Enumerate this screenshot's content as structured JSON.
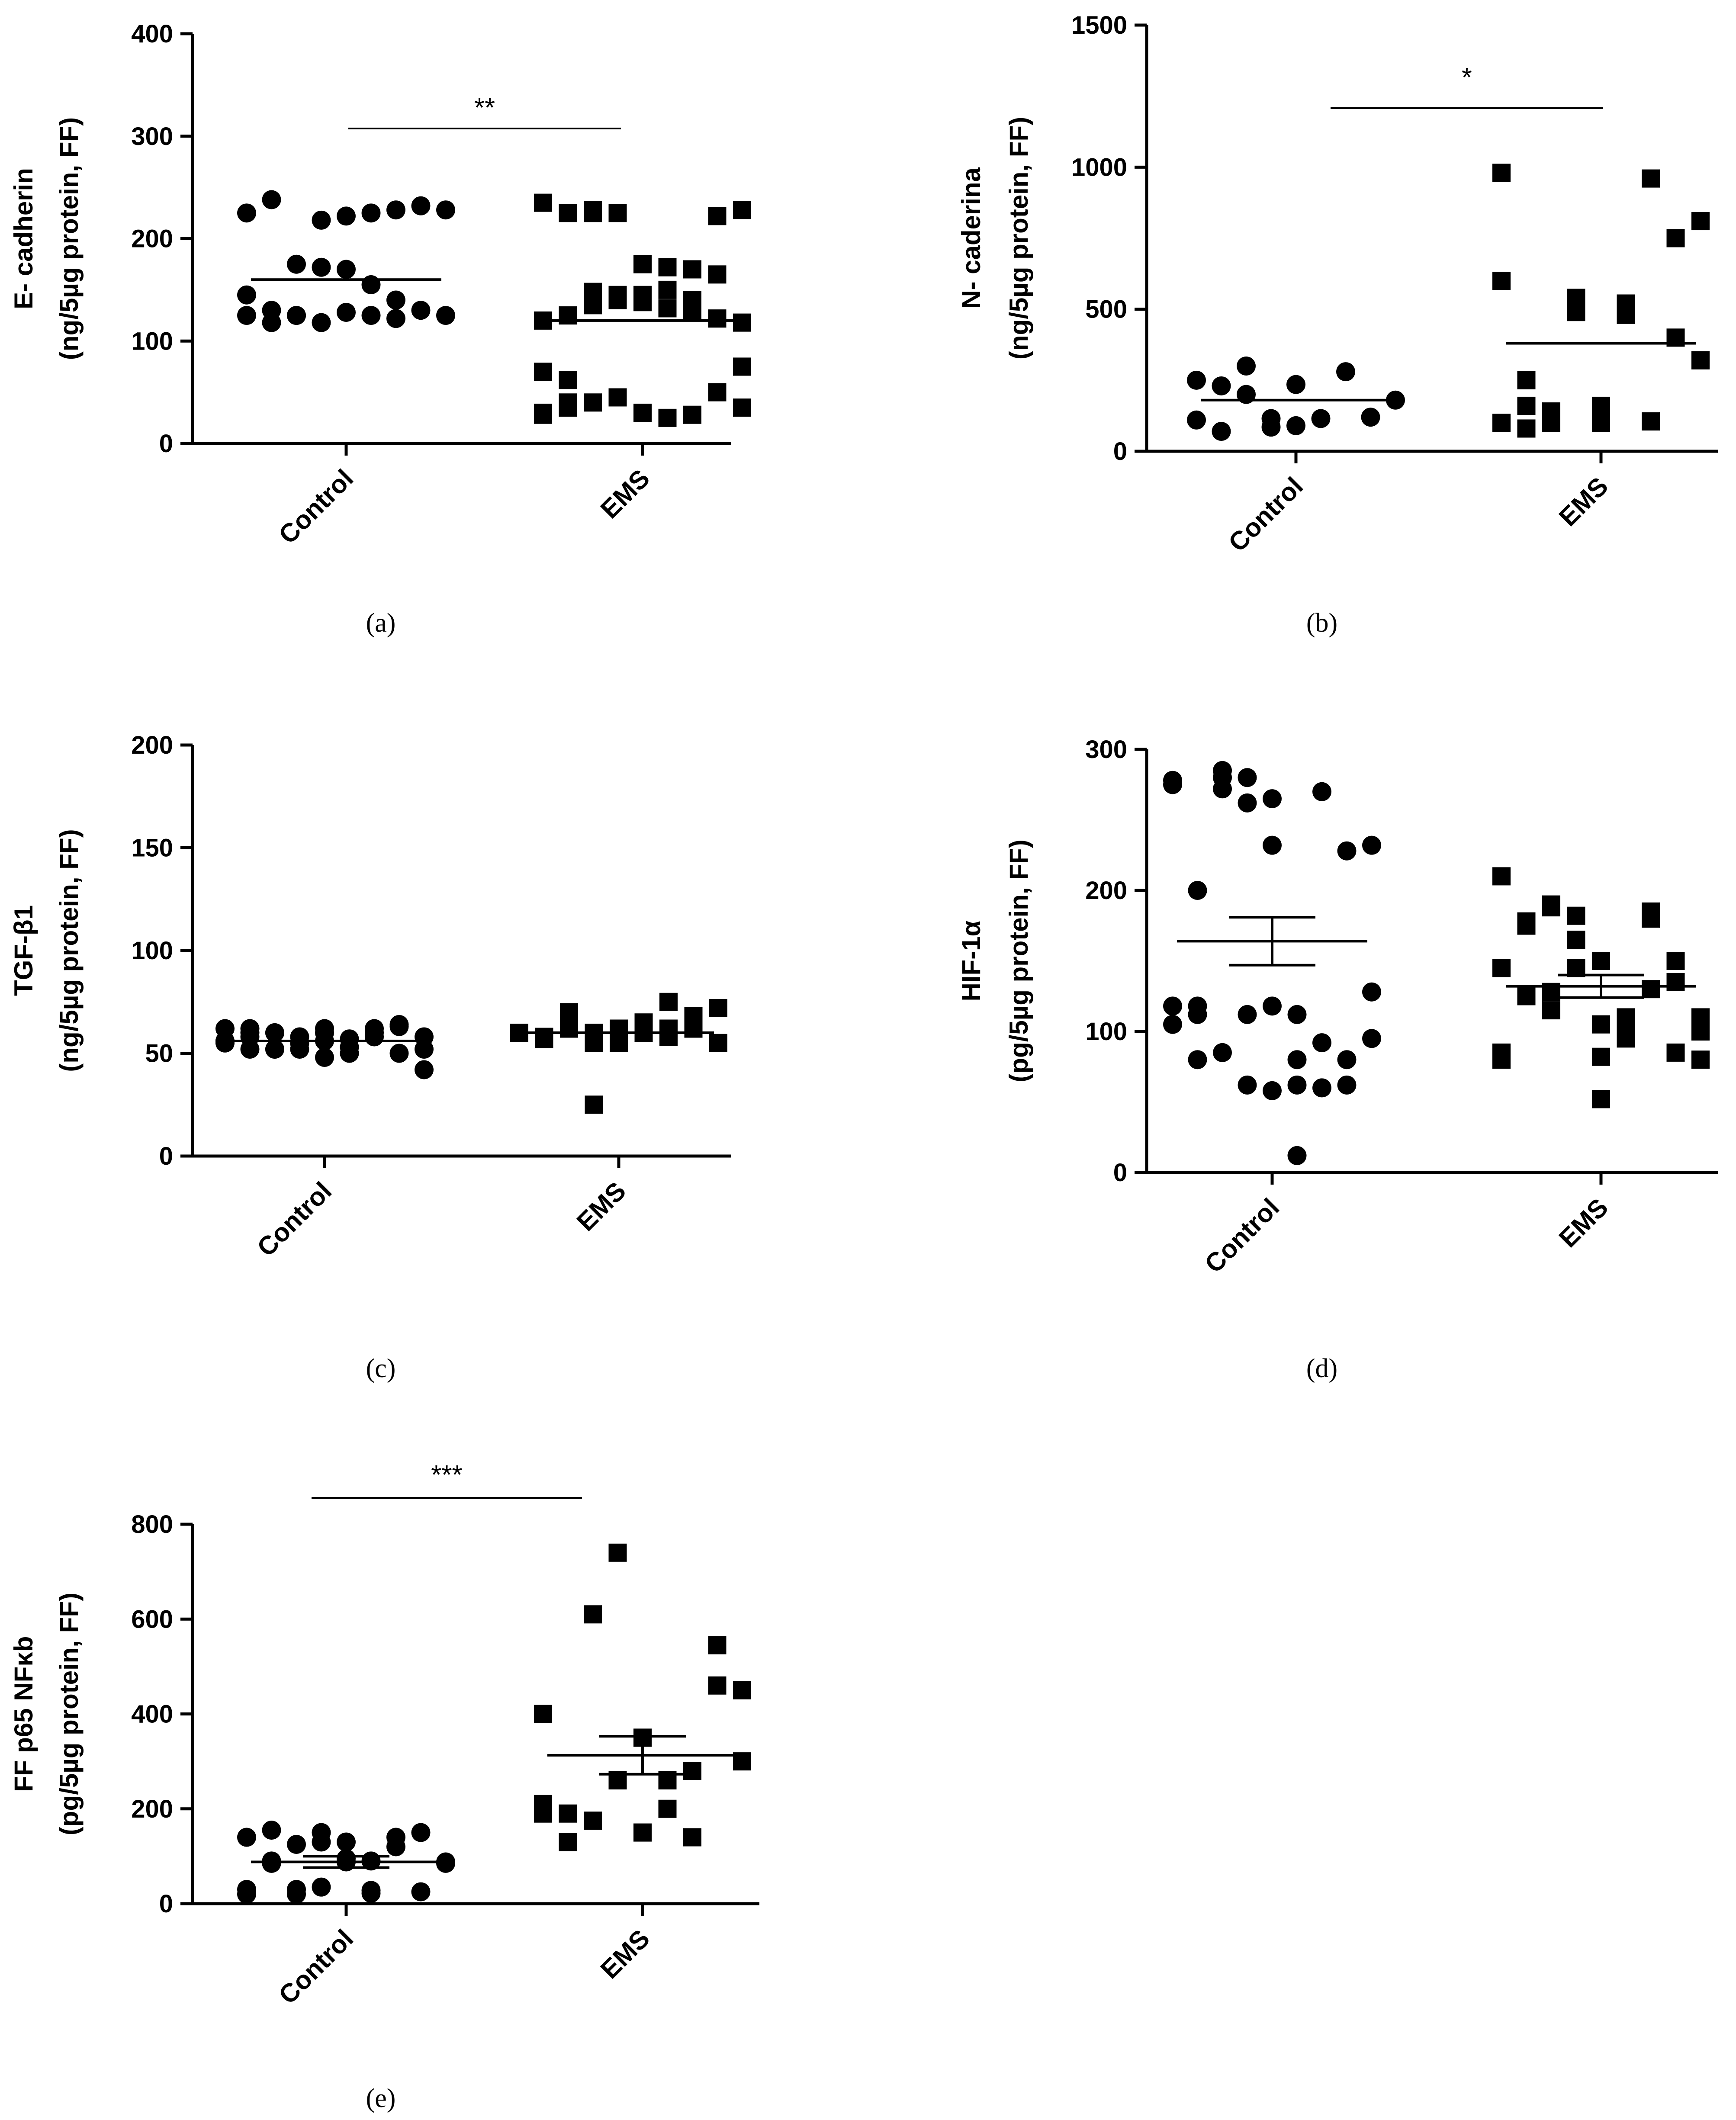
{
  "chart_data": [
    {
      "id": "a",
      "type": "scatter",
      "caption": "(a)",
      "ylabel": [
        "E- cadherin",
        "(ng/5µg protein, FF)"
      ],
      "ylim": [
        0,
        400
      ],
      "yticks": [
        0,
        100,
        200,
        300,
        400
      ],
      "categories": [
        "Control",
        "EMS"
      ],
      "significance": "**",
      "series": [
        {
          "name": "Control",
          "marker": "circle",
          "mean": 160,
          "values": [
            145,
            130,
            125,
            218,
            222,
            225,
            228,
            232,
            228,
            225,
            238,
            175,
            172,
            170,
            155,
            140,
            130,
            125,
            125,
            118,
            125,
            118,
            128,
            125,
            122
          ]
        },
        {
          "name": "EMS",
          "marker": "square",
          "mean": 120,
          "values": [
            28,
            35,
            40,
            45,
            30,
            25,
            28,
            50,
            35,
            30,
            40,
            148,
            145,
            138,
            132,
            128,
            122,
            118,
            120,
            125,
            135,
            140,
            145,
            150,
            140,
            222,
            228,
            235,
            225,
            228,
            225,
            175,
            172,
            170,
            165,
            75,
            70,
            62,
            225
          ]
        }
      ]
    },
    {
      "id": "b",
      "type": "scatter",
      "caption": "(b)",
      "ylabel": [
        "N- caderina",
        "(ng/5µg protein, FF)"
      ],
      "ylim": [
        0,
        1500
      ],
      "yticks": [
        0,
        500,
        1000,
        1500
      ],
      "categories": [
        "Control",
        "EMS"
      ],
      "significance": "*",
      "series": [
        {
          "name": "Control",
          "marker": "circle",
          "mean": 180,
          "values": [
            110,
            230,
            300,
            115,
            235,
            115,
            280,
            120,
            180,
            250,
            70,
            200,
            85,
            90
          ]
        },
        {
          "name": "EMS",
          "marker": "square",
          "mean": 380,
          "values": [
            100,
            160,
            110,
            540,
            100,
            520,
            105,
            400,
            320,
            600,
            80,
            140,
            520,
            160,
            480,
            960,
            750,
            810,
            980,
            250,
            100,
            490
          ]
        }
      ]
    },
    {
      "id": "c",
      "type": "scatter",
      "caption": "(c)",
      "ylabel": [
        "TGF-β1",
        "(ng/5µg protein, FF)"
      ],
      "ylim": [
        0,
        200
      ],
      "yticks": [
        0,
        50,
        100,
        150,
        200
      ],
      "categories": [
        "Control",
        "EMS"
      ],
      "significance": "",
      "series": [
        {
          "name": "Control",
          "marker": "circle",
          "mean": 56,
          "values": [
            56,
            62,
            52,
            58,
            60,
            53,
            62,
            50,
            58,
            62,
            52,
            60,
            55,
            62,
            50,
            58,
            64,
            42,
            56,
            60,
            52,
            55,
            48,
            57,
            60,
            63,
            52,
            55,
            58,
            60,
            52,
            56
          ]
        },
        {
          "name": "EMS",
          "marker": "square",
          "mean": 60,
          "values": [
            60,
            58,
            70,
            60,
            55,
            65,
            58,
            62,
            55,
            60,
            57,
            62,
            25,
            55,
            60,
            75,
            68,
            72,
            60,
            58,
            65,
            55,
            62,
            60,
            62
          ]
        }
      ]
    },
    {
      "id": "d",
      "type": "scatter",
      "caption": "(d)",
      "ylabel": [
        "HIF-1α",
        "(pg/5µg protein, FF)"
      ],
      "ylim": [
        0,
        300
      ],
      "yticks": [
        0,
        100,
        200,
        300
      ],
      "categories": [
        "Control",
        "EMS"
      ],
      "significance": "",
      "series": [
        {
          "name": "Control",
          "marker": "circle",
          "mean": 164,
          "sem": 17,
          "values": [
            278,
            118,
            280,
            62,
            265,
            112,
            270,
            62,
            232,
            105,
            80,
            272,
            262,
            232,
            12,
            92,
            80,
            128,
            118,
            200,
            285,
            112,
            58,
            80,
            60,
            228,
            95,
            275,
            112,
            85,
            280,
            118,
            62
          ]
        },
        {
          "name": "EMS",
          "marker": "square",
          "mean": 132,
          "sem": 8,
          "values": [
            85,
            125,
            188,
            165,
            105,
            110,
            185,
            150,
            80,
            145,
            125,
            115,
            182,
            150,
            95,
            130,
            85,
            110,
            210,
            175,
            128,
            145,
            52,
            100,
            180,
            135,
            100,
            80,
            178,
            190,
            165,
            82
          ]
        }
      ]
    },
    {
      "id": "e",
      "type": "scatter",
      "caption": "(e)",
      "ylabel": [
        "FF p65 NFκb",
        "(pg/5µg protein, FF)"
      ],
      "ylim": [
        0,
        800
      ],
      "yticks": [
        0,
        200,
        400,
        600,
        800
      ],
      "categories": [
        "Control",
        "EMS"
      ],
      "significance": "***",
      "series": [
        {
          "name": "Control",
          "marker": "circle",
          "mean": 88,
          "sem": 12,
          "values": [
            20,
            90,
            125,
            35,
            130,
            90,
            140,
            25,
            85,
            140,
            85,
            30,
            150,
            88,
            22,
            120,
            150,
            88,
            30,
            155,
            20,
            130,
            95,
            28
          ]
        },
        {
          "name": "EMS",
          "marker": "square",
          "mean": 313,
          "sem": 40,
          "values": [
            190,
            130,
            175,
            260,
            150,
            200,
            280,
            545,
            450,
            400,
            190,
            610,
            740,
            350,
            260,
            140,
            460,
            300,
            210
          ]
        }
      ]
    }
  ]
}
